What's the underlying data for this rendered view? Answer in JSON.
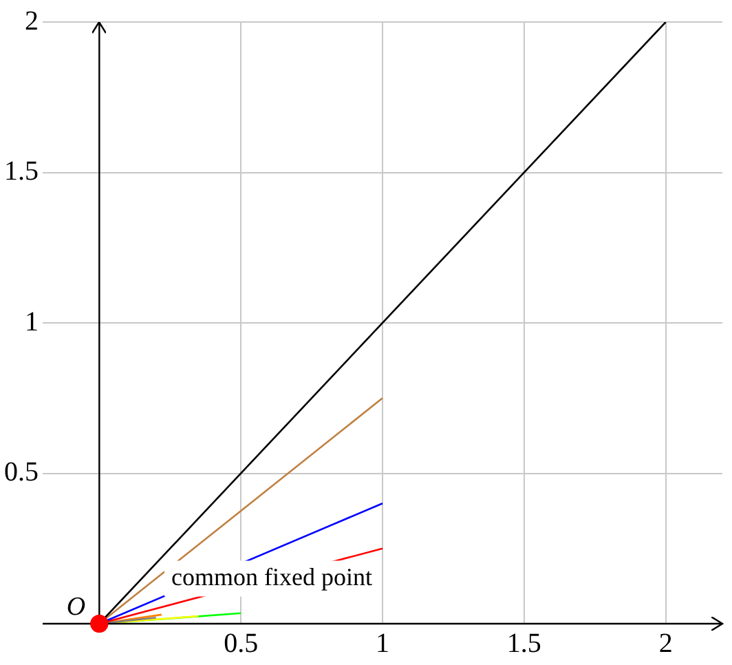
{
  "chart_data": {
    "type": "line",
    "xlim": [
      -0.2,
      2.2
    ],
    "ylim": [
      0,
      2
    ],
    "xticks": [
      0.5,
      1,
      1.5,
      2
    ],
    "yticks": [
      0.5,
      1,
      1.5,
      2
    ],
    "grid": true,
    "legend": false,
    "line_style": "solid",
    "series": [
      {
        "color": "#000000",
        "x": [
          0,
          2
        ],
        "values": [
          0,
          2
        ]
      },
      {
        "color": "#c08040",
        "x": [
          0,
          1
        ],
        "values": [
          0,
          0.75
        ]
      },
      {
        "color": "#0000ff",
        "x": [
          0,
          1
        ],
        "values": [
          0,
          0.4
        ]
      },
      {
        "color": "#ff0000",
        "x": [
          0,
          1
        ],
        "values": [
          0,
          0.25
        ]
      },
      {
        "color": "#808080",
        "x": [
          0,
          0.2
        ],
        "values": [
          0,
          0.02
        ]
      },
      {
        "color": "#ff8000",
        "x": [
          0,
          0.22
        ],
        "values": [
          0,
          0.03
        ]
      },
      {
        "color": "#ffff00",
        "x": [
          0,
          0.35
        ],
        "values": [
          0,
          0.025
        ]
      },
      {
        "color": "#00ff00",
        "x": [
          0,
          0.5
        ],
        "values": [
          0,
          0.035
        ]
      },
      {
        "type": "scatter",
        "marker": "circle",
        "color": "#ff0000",
        "x": [
          0
        ],
        "values": [
          0
        ]
      }
    ],
    "annotations": [
      {
        "text": "O",
        "x": 0,
        "y": 0
      },
      {
        "text": "common fixed point",
        "x": 0.23,
        "y": 0.15
      }
    ]
  }
}
